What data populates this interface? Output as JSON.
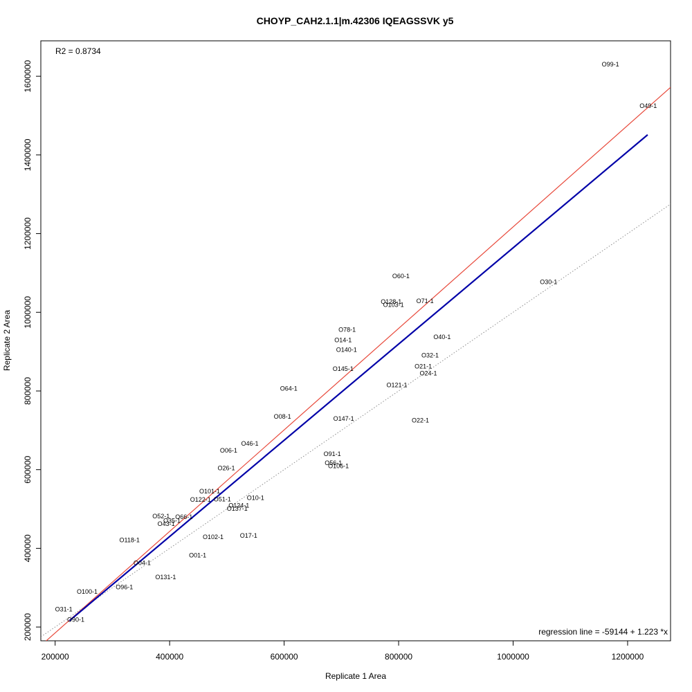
{
  "chart_data": {
    "type": "scatter",
    "title": "CHOYP_CAH2.1.1|m.42306 IQEAGSSVK y5",
    "xlabel": "Replicate 1 Area",
    "ylabel": "Replicate 2 Area",
    "xlim": [
      175000,
      1275000
    ],
    "ylim": [
      165000,
      1690000
    ],
    "x_ticks": [
      200000,
      400000,
      600000,
      800000,
      1000000,
      1200000
    ],
    "x_tick_labels": [
      "200000",
      "400000",
      "600000",
      "800000",
      "1000000",
      "1200000"
    ],
    "y_ticks": [
      200000,
      400000,
      600000,
      800000,
      1000000,
      1200000,
      1400000,
      1600000
    ],
    "y_tick_labels": [
      "200000",
      "400000",
      "600000",
      "800000",
      "1000000",
      "1200000",
      "1400000",
      "1600000"
    ],
    "grid": false,
    "r2_text": "R2 = 0.8734",
    "regression_text": "regression line = -59144 + 1.223 *x",
    "regression": {
      "intercept": -59144,
      "slope": 1.223,
      "x_range": [
        225000,
        1235000
      ],
      "color": "#0000a8"
    },
    "identity_line": {
      "intercept": 0,
      "slope": 1,
      "color": "#8c8c8c"
    },
    "fit_line": {
      "intercept": -73000,
      "slope": 1.29,
      "color": "#e8483a"
    },
    "points": [
      {
        "label": "O99-1",
        "x": 1170000,
        "y": 1630000
      },
      {
        "label": "O49-1",
        "x": 1236000,
        "y": 1525000
      },
      {
        "label": "O60-1",
        "x": 804000,
        "y": 1092000
      },
      {
        "label": "O30-1",
        "x": 1062000,
        "y": 1077000
      },
      {
        "label": "O128-1",
        "x": 787000,
        "y": 1027000
      },
      {
        "label": "O103-1",
        "x": 791000,
        "y": 1019000
      },
      {
        "label": "O71-1",
        "x": 846000,
        "y": 1029000
      },
      {
        "label": "O78-1",
        "x": 710000,
        "y": 956000
      },
      {
        "label": "O40-1",
        "x": 876000,
        "y": 937000
      },
      {
        "label": "O14-1",
        "x": 703000,
        "y": 929000
      },
      {
        "label": "O140-1",
        "x": 709000,
        "y": 905000
      },
      {
        "label": "O32-1",
        "x": 855000,
        "y": 891000
      },
      {
        "label": "O21-1",
        "x": 843000,
        "y": 862000
      },
      {
        "label": "O145-1",
        "x": 703000,
        "y": 856000
      },
      {
        "label": "O24-1",
        "x": 852000,
        "y": 845000
      },
      {
        "label": "O121-1",
        "x": 797000,
        "y": 815000
      },
      {
        "label": "O64-1",
        "x": 608000,
        "y": 806000
      },
      {
        "label": "O08-1",
        "x": 597000,
        "y": 735000
      },
      {
        "label": "O147-1",
        "x": 704000,
        "y": 730000
      },
      {
        "label": "O22-1",
        "x": 838000,
        "y": 725000
      },
      {
        "label": "O46-1",
        "x": 540000,
        "y": 666000
      },
      {
        "label": "O06-1",
        "x": 503000,
        "y": 649000
      },
      {
        "label": "O91-1",
        "x": 684000,
        "y": 640000
      },
      {
        "label": "O56-1",
        "x": 686000,
        "y": 617000
      },
      {
        "label": "O106-1",
        "x": 695000,
        "y": 609000
      },
      {
        "label": "O26-1",
        "x": 499000,
        "y": 604000
      },
      {
        "label": "O101-1",
        "x": 470000,
        "y": 545000
      },
      {
        "label": "O10-1",
        "x": 550000,
        "y": 528000
      },
      {
        "label": "O51-1",
        "x": 492000,
        "y": 525000
      },
      {
        "label": "O122-1",
        "x": 454000,
        "y": 524000
      },
      {
        "label": "O124-1",
        "x": 521000,
        "y": 509000
      },
      {
        "label": "O137-1",
        "x": 518000,
        "y": 501000
      },
      {
        "label": "O52-1",
        "x": 385000,
        "y": 482000
      },
      {
        "label": "O66-1",
        "x": 425000,
        "y": 480000
      },
      {
        "label": "O35-1",
        "x": 404000,
        "y": 470000
      },
      {
        "label": "O43-1",
        "x": 394000,
        "y": 462000
      },
      {
        "label": "O118-1",
        "x": 330000,
        "y": 421000
      },
      {
        "label": "O102-1",
        "x": 476000,
        "y": 429000
      },
      {
        "label": "O17-1",
        "x": 538000,
        "y": 432000
      },
      {
        "label": "O01-1",
        "x": 449000,
        "y": 382000
      },
      {
        "label": "O04-1",
        "x": 352000,
        "y": 363000
      },
      {
        "label": "O131-1",
        "x": 393000,
        "y": 327000
      },
      {
        "label": "O96-1",
        "x": 321000,
        "y": 301000
      },
      {
        "label": "O100-1",
        "x": 256000,
        "y": 290000
      },
      {
        "label": "O31-1",
        "x": 215000,
        "y": 245000
      },
      {
        "label": "O90-1",
        "x": 236000,
        "y": 219000
      }
    ]
  }
}
